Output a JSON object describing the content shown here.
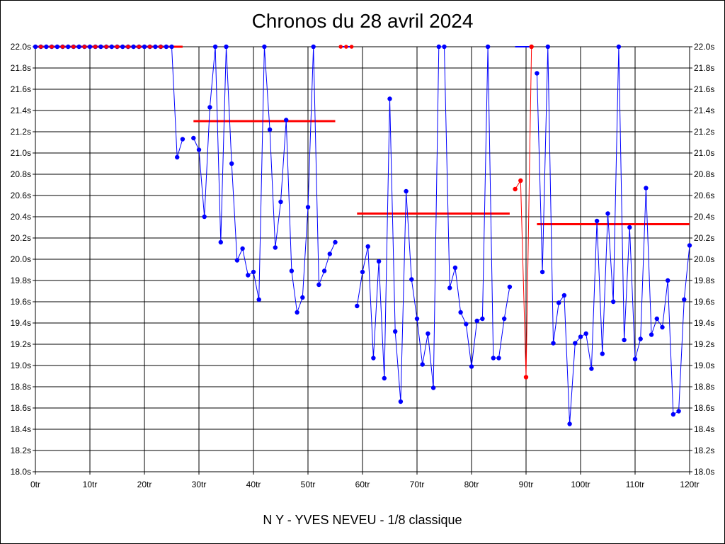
{
  "chart_data": {
    "type": "line",
    "title": "Chronos du 28 avril 2024",
    "subtitle": "N Y - YVES NEVEU - 1/8 classique",
    "xlabel": "",
    "ylabel": "",
    "xlim": [
      0,
      120
    ],
    "ylim": [
      18.0,
      22.0
    ],
    "grid": true,
    "x_ticks": [
      0,
      10,
      20,
      30,
      40,
      50,
      60,
      70,
      80,
      90,
      100,
      110,
      120
    ],
    "x_tick_labels": [
      "0tr",
      "10tr",
      "20tr",
      "30tr",
      "40tr",
      "50tr",
      "60tr",
      "70tr",
      "80tr",
      "90tr",
      "100tr",
      "110tr",
      "120tr"
    ],
    "y_ticks": [
      18.0,
      18.2,
      18.4,
      18.6,
      18.8,
      19.0,
      19.2,
      19.4,
      19.6,
      19.8,
      20.0,
      20.2,
      20.4,
      20.6,
      20.8,
      21.0,
      21.2,
      21.4,
      21.6,
      21.8,
      22.0
    ],
    "y_tick_labels": [
      "18.0s",
      "18.2s",
      "18.4s",
      "18.6s",
      "18.8s",
      "19.0s",
      "19.2s",
      "19.4s",
      "19.6s",
      "19.8s",
      "20.0s",
      "20.2s",
      "20.4s",
      "20.6s",
      "20.8s",
      "21.0s",
      "21.2s",
      "21.4s",
      "21.6s",
      "21.8s",
      "22.0s"
    ],
    "colors": {
      "laps": "#0000ff",
      "red_laps": "#ff0000",
      "averages": "#ff0000",
      "grid": "#000000"
    },
    "segments": [
      {
        "color": "#0000ff",
        "points": [
          [
            0,
            22.0
          ],
          [
            1,
            22.0
          ],
          [
            2,
            22.0
          ],
          [
            3,
            22.0
          ],
          [
            4,
            22.0
          ],
          [
            5,
            22.0
          ],
          [
            6,
            22.0
          ],
          [
            7,
            22.0
          ],
          [
            8,
            22.0
          ],
          [
            9,
            22.0
          ],
          [
            10,
            22.0
          ],
          [
            11,
            22.0
          ],
          [
            12,
            22.0
          ],
          [
            13,
            22.0
          ],
          [
            14,
            22.0
          ],
          [
            15,
            22.0
          ],
          [
            16,
            22.0
          ],
          [
            17,
            22.0
          ],
          [
            18,
            22.0
          ],
          [
            19,
            22.0
          ],
          [
            20,
            22.0
          ],
          [
            21,
            22.0
          ],
          [
            22,
            22.0
          ],
          [
            23,
            22.0
          ],
          [
            24,
            22.0
          ],
          [
            25,
            22.0
          ],
          [
            26,
            20.96
          ],
          [
            27,
            21.13
          ]
        ]
      },
      {
        "color": "#0000ff",
        "points": [
          [
            29,
            21.14
          ],
          [
            30,
            21.03
          ],
          [
            31,
            20.4
          ],
          [
            32,
            21.43
          ],
          [
            33,
            22.0
          ],
          [
            34,
            20.16
          ],
          [
            35,
            22.0
          ],
          [
            36,
            20.9
          ],
          [
            37,
            19.99
          ],
          [
            38,
            20.1
          ],
          [
            39,
            19.85
          ],
          [
            40,
            19.88
          ],
          [
            41,
            19.62
          ],
          [
            42,
            22.0
          ],
          [
            43,
            21.22
          ],
          [
            44,
            20.11
          ],
          [
            45,
            20.54
          ],
          [
            46,
            21.31
          ],
          [
            47,
            19.89
          ],
          [
            48,
            19.5
          ],
          [
            49,
            19.64
          ],
          [
            50,
            20.49
          ],
          [
            51,
            22.0
          ],
          [
            52,
            19.76
          ],
          [
            53,
            19.89
          ],
          [
            54,
            20.05
          ],
          [
            55,
            20.16
          ]
        ]
      },
      {
        "color": "#0000ff",
        "points": [
          [
            59,
            19.56
          ],
          [
            60,
            19.88
          ],
          [
            61,
            20.12
          ],
          [
            62,
            19.07
          ],
          [
            63,
            19.98
          ],
          [
            64,
            18.88
          ],
          [
            65,
            21.51
          ],
          [
            66,
            19.32
          ],
          [
            67,
            18.66
          ],
          [
            68,
            20.64
          ],
          [
            69,
            19.81
          ],
          [
            70,
            19.44
          ],
          [
            71,
            19.01
          ],
          [
            72,
            19.3
          ],
          [
            73,
            18.79
          ],
          [
            74,
            22.0
          ],
          [
            75,
            22.0
          ],
          [
            76,
            19.73
          ],
          [
            77,
            19.92
          ],
          [
            78,
            19.5
          ],
          [
            79,
            19.39
          ],
          [
            80,
            18.99
          ],
          [
            81,
            19.42
          ],
          [
            82,
            19.44
          ],
          [
            83,
            22.0
          ],
          [
            84,
            19.07
          ],
          [
            85,
            19.07
          ],
          [
            86,
            19.44
          ],
          [
            87,
            19.74
          ]
        ]
      },
      {
        "color": "#0000ff",
        "points": [
          [
            92,
            21.75
          ],
          [
            93,
            19.88
          ],
          [
            94,
            22.0
          ],
          [
            95,
            19.21
          ],
          [
            96,
            19.59
          ],
          [
            97,
            19.66
          ],
          [
            98,
            18.45
          ],
          [
            99,
            19.21
          ],
          [
            100,
            19.27
          ],
          [
            101,
            19.3
          ],
          [
            102,
            18.97
          ],
          [
            103,
            20.36
          ],
          [
            104,
            19.11
          ],
          [
            105,
            20.43
          ],
          [
            106,
            19.6
          ],
          [
            107,
            22.0
          ],
          [
            108,
            19.24
          ],
          [
            109,
            20.3
          ],
          [
            110,
            19.06
          ],
          [
            111,
            19.25
          ],
          [
            112,
            20.67
          ],
          [
            113,
            19.29
          ],
          [
            114,
            19.44
          ],
          [
            115,
            19.36
          ],
          [
            116,
            19.8
          ],
          [
            117,
            18.54
          ],
          [
            118,
            18.57
          ],
          [
            119,
            19.62
          ],
          [
            120,
            20.13
          ]
        ]
      },
      {
        "color": "#ff0000",
        "points": [
          [
            88,
            20.66
          ],
          [
            89,
            20.74
          ],
          [
            90,
            18.89
          ],
          [
            91,
            22.0
          ]
        ]
      }
    ],
    "red_markers": [
      [
        1,
        22.0
      ],
      [
        3,
        22.0
      ],
      [
        5,
        22.0
      ],
      [
        7,
        22.0
      ],
      [
        9,
        22.0
      ],
      [
        11,
        22.0
      ],
      [
        13,
        22.0
      ],
      [
        15,
        22.0
      ],
      [
        17,
        22.0
      ],
      [
        19,
        22.0
      ],
      [
        21,
        22.0
      ],
      [
        23,
        22.0
      ],
      [
        56,
        22.0
      ],
      [
        57,
        22.0
      ],
      [
        58,
        22.0
      ]
    ],
    "average_lines": [
      {
        "x_start": 0,
        "x_end": 27,
        "y": 22.0
      },
      {
        "x_start": 29,
        "x_end": 55,
        "y": 21.3
      },
      {
        "x_start": 59,
        "x_end": 87,
        "y": 20.43
      },
      {
        "x_start": 92,
        "x_end": 120,
        "y": 20.33
      }
    ],
    "blue_flat_segments": [
      {
        "x_start": 56,
        "x_end": 58,
        "y": 22.0
      },
      {
        "x_start": 88,
        "x_end": 91,
        "y": 22.0
      }
    ]
  }
}
